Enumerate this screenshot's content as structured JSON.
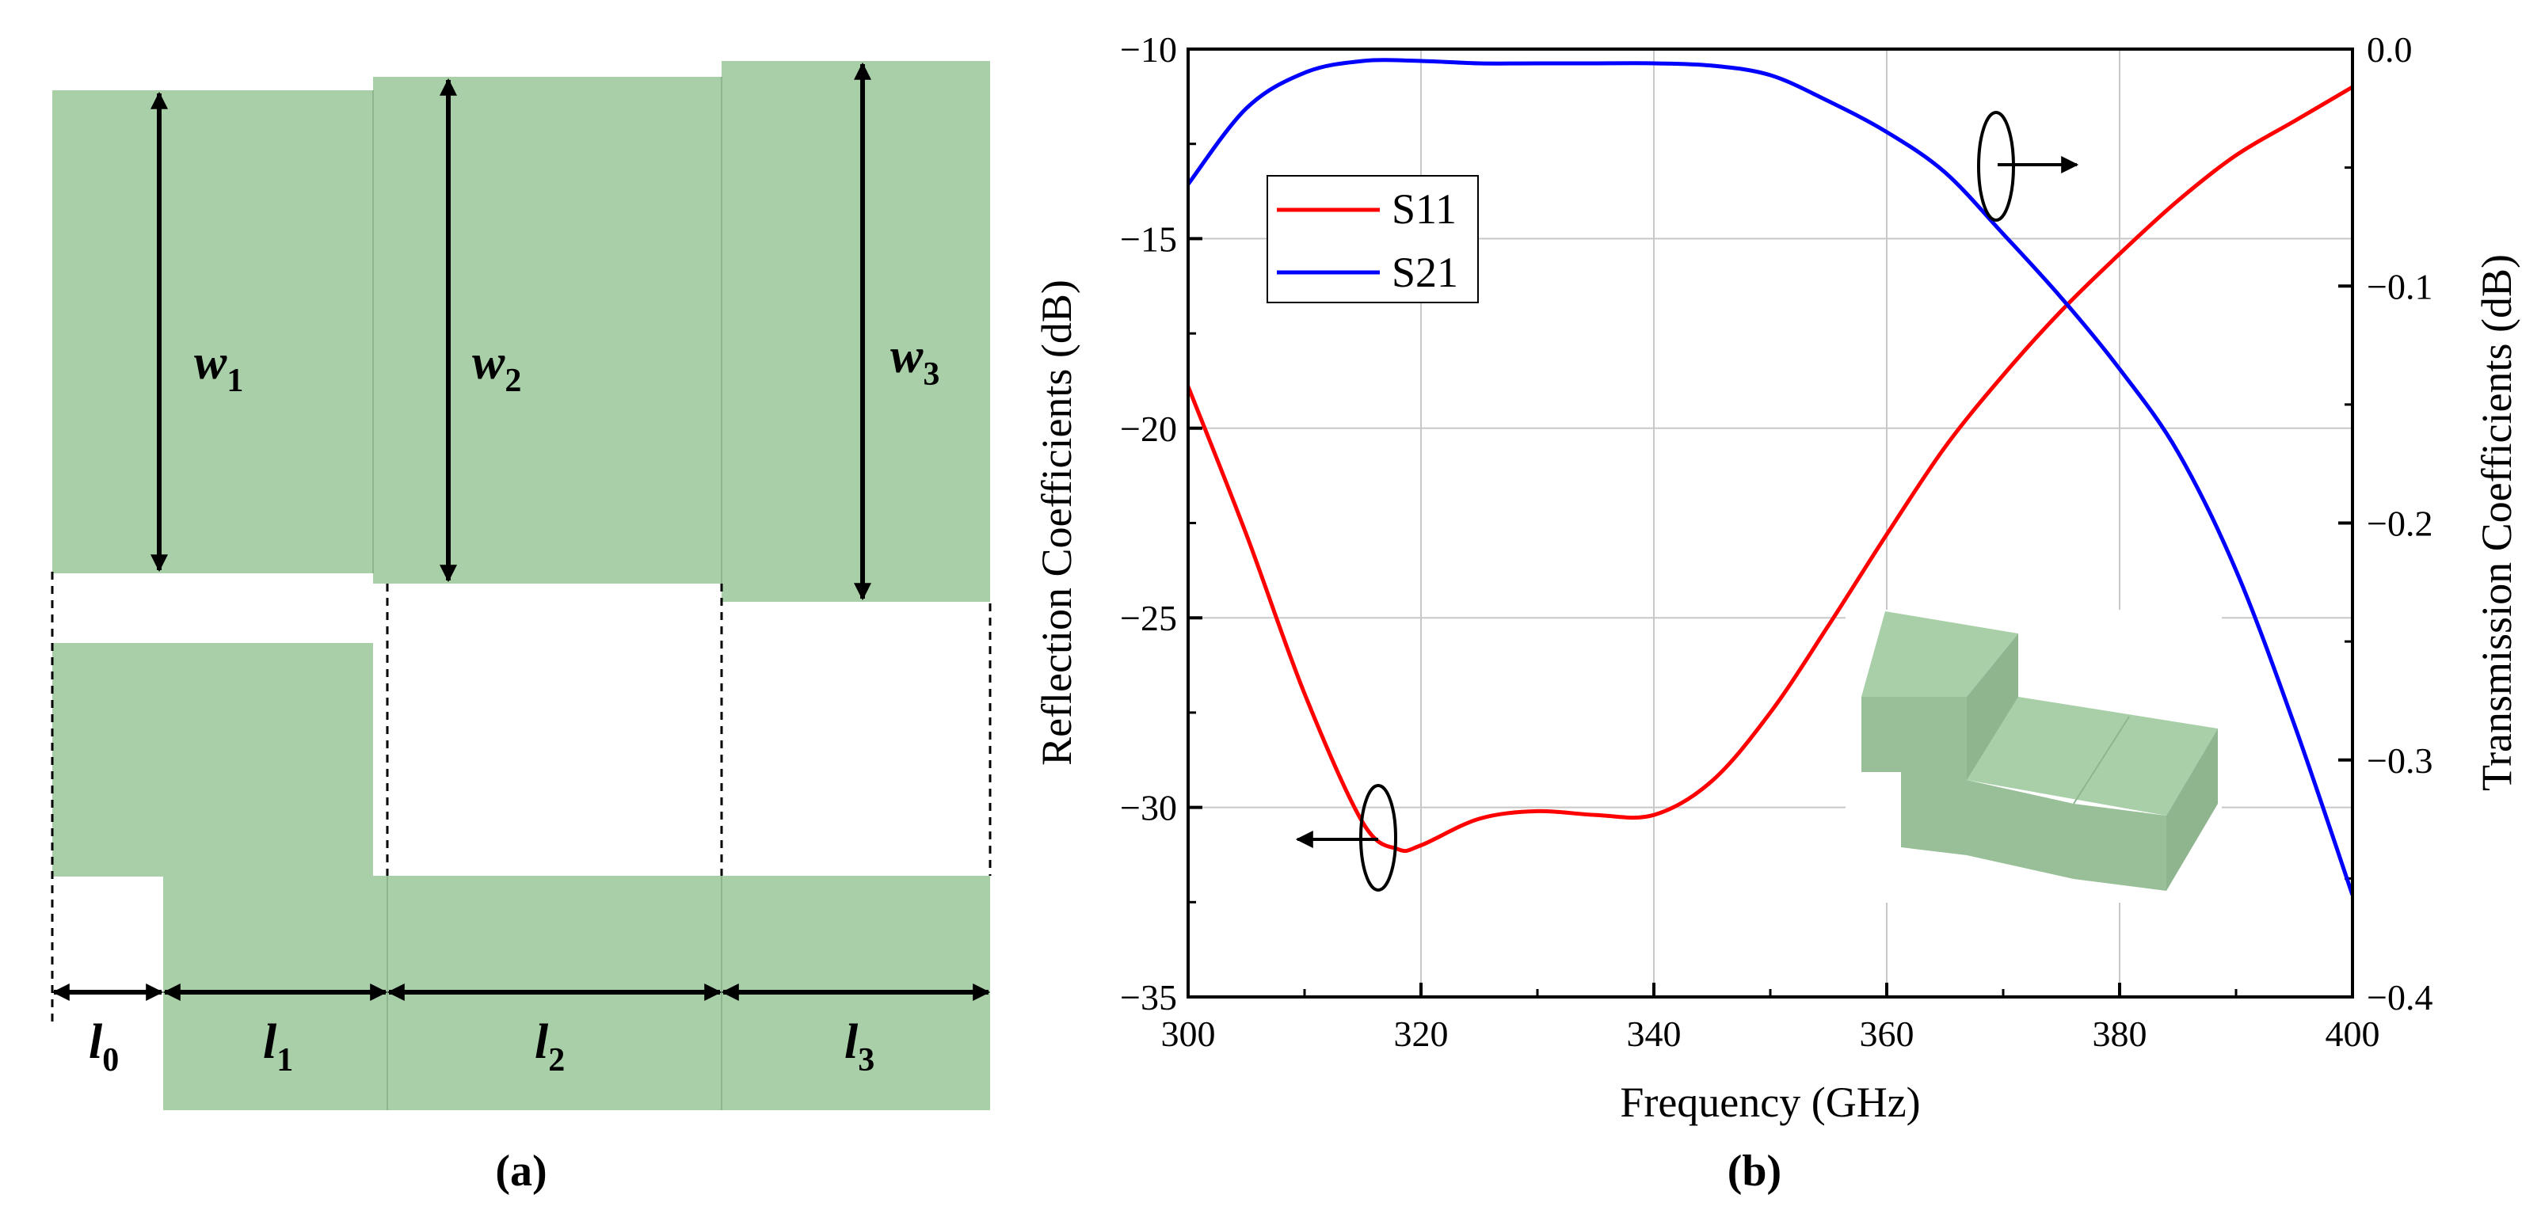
{
  "colors": {
    "block_fill": "#a8cfa8",
    "block_edge": "#8fb58f",
    "s11": "#ff0000",
    "s21": "#0000ff",
    "grid": "#c8c8c8",
    "ink": "#000000"
  },
  "panel_a": {
    "caption": "(a)",
    "width_labels": [
      {
        "main": "w",
        "sub": "1"
      },
      {
        "main": "w",
        "sub": "2"
      },
      {
        "main": "w",
        "sub": "3"
      }
    ],
    "length_labels": [
      {
        "main": "l",
        "sub": "0"
      },
      {
        "main": "l",
        "sub": "1"
      },
      {
        "main": "l",
        "sub": "2"
      },
      {
        "main": "l",
        "sub": "3"
      }
    ]
  },
  "panel_b": {
    "caption": "(b)"
  },
  "chart_data": {
    "type": "line",
    "xlabel": "Frequency (GHz)",
    "ylabel": "Reflection Coefficients (dB)",
    "y2label": "Transmission Coefficients (dB)",
    "xlim": [
      300,
      400
    ],
    "ylim": [
      -35,
      -10
    ],
    "y2lim": [
      -0.4,
      0.0
    ],
    "xticks": [
      300,
      320,
      340,
      360,
      380,
      400
    ],
    "yticks": [
      -35,
      -30,
      -25,
      -20,
      -15,
      -10
    ],
    "y2ticks": [
      -0.4,
      -0.3,
      -0.2,
      -0.1,
      0.0
    ],
    "xtick_labels": [
      "300",
      "320",
      "340",
      "360",
      "380",
      "400"
    ],
    "ytick_labels": [
      "−35",
      "−30",
      "−25",
      "−20",
      "−15",
      "−10"
    ],
    "y2tick_labels": [
      "−0.4",
      "−0.3",
      "−0.2",
      "−0.1",
      "0.0"
    ],
    "grid": true,
    "legend_position": "top-left",
    "series": [
      {
        "name": "S11",
        "axis": "left",
        "color": "#ff0000",
        "x": [
          300,
          305,
          310,
          315,
          318,
          320,
          325,
          330,
          335,
          340,
          345,
          350,
          355,
          360,
          365,
          370,
          375,
          380,
          385,
          390,
          395,
          400
        ],
        "y": [
          -18.9,
          -22.8,
          -27.0,
          -30.4,
          -31.1,
          -31.0,
          -30.3,
          -30.1,
          -30.2,
          -30.2,
          -29.3,
          -27.5,
          -25.2,
          -22.8,
          -20.5,
          -18.6,
          -16.9,
          -15.4,
          -14.0,
          -12.8,
          -11.9,
          -11.0
        ]
      },
      {
        "name": "S21",
        "axis": "right",
        "color": "#0000ff",
        "x": [
          300,
          305,
          310,
          315,
          320,
          325,
          330,
          335,
          340,
          345,
          350,
          355,
          360,
          365,
          370,
          375,
          380,
          385,
          390,
          395,
          400
        ],
        "y": [
          -0.057,
          -0.025,
          -0.01,
          -0.005,
          -0.005,
          -0.006,
          -0.006,
          -0.006,
          -0.006,
          -0.007,
          -0.011,
          -0.022,
          -0.035,
          -0.052,
          -0.078,
          -0.105,
          -0.135,
          -0.17,
          -0.22,
          -0.285,
          -0.357
        ]
      }
    ],
    "annotations": [
      {
        "text": "",
        "shape": "ellipse-with-arrow",
        "series": "S11",
        "points_to": "left-axis",
        "near_x": 317,
        "near_y": -30.8
      },
      {
        "text": "",
        "shape": "ellipse-with-arrow",
        "series": "S21",
        "points_to": "right-axis",
        "near_x": 368,
        "near_y": -0.05
      }
    ],
    "inset": "3D model of three-section stepped waveguide"
  }
}
